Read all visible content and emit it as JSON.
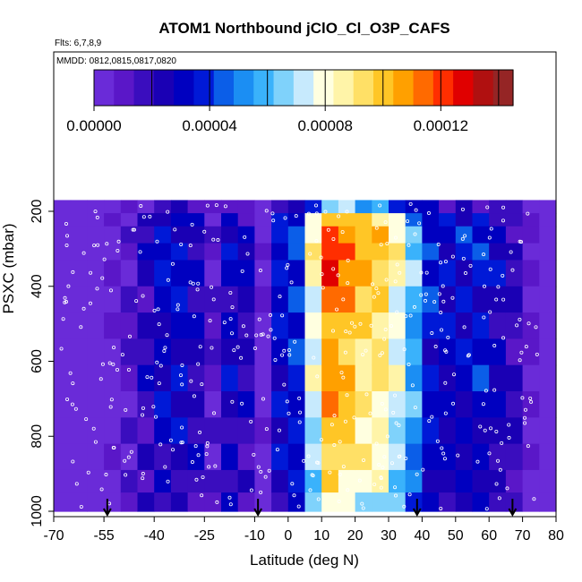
{
  "chart_data": {
    "type": "heatmap",
    "title": "ATOM1 Northbound jClO_Cl_O3P_CAFS",
    "flights_note": "Flts: 6,7,8,9",
    "dates_note": "MMDD: 0812,0815,0817,0820",
    "xlabel": "Latitude (deg N)",
    "ylabel": "PSXC (mbar)",
    "xlim": [
      -70,
      80
    ],
    "ylim": [
      1000,
      160
    ],
    "y_inverted": true,
    "x_tick_labels": [
      "-70",
      "-55",
      "-40",
      "-25",
      "-10",
      "0",
      "10",
      "20",
      "30",
      "40",
      "50",
      "60",
      "70",
      "80"
    ],
    "x_tick_values": [
      -70,
      -55,
      -40,
      -25,
      -10,
      0,
      10,
      20,
      30,
      40,
      50,
      60,
      70,
      80
    ],
    "y_tick_labels": [
      "200",
      "400",
      "600",
      "800",
      "1000"
    ],
    "y_tick_values": [
      200,
      400,
      600,
      800,
      1000
    ],
    "colorbar": {
      "min": 0.0,
      "max": 0.000145,
      "tick_labels": [
        "0.00000",
        "0.00004",
        "0.00008",
        "0.00012"
      ],
      "tick_values": [
        0.0,
        4e-05,
        8e-05,
        0.00012
      ],
      "colors": [
        "#6a2bd8",
        "#5a17c8",
        "#3a0dbe",
        "#1a00b4",
        "#0000c0",
        "#0019d7",
        "#0b5ee8",
        "#1b8ef3",
        "#3ab2fb",
        "#7fd2fb",
        "#c7eafd",
        "#ffffe0",
        "#fff4a8",
        "#ffe066",
        "#ffc626",
        "#ffa000",
        "#ff6a00",
        "#ff2e00",
        "#e00000",
        "#b01010",
        "#952525"
      ]
    },
    "latitude_bins": [
      -67.5,
      -62.5,
      -57.5,
      -52.5,
      -47.5,
      -42.5,
      -37.5,
      -32.5,
      -27.5,
      -22.5,
      -17.5,
      -12.5,
      -7.5,
      -2.5,
      2.5,
      7.5,
      12.5,
      17.5,
      22.5,
      27.5,
      32.5,
      37.5,
      42.5,
      47.5,
      52.5,
      57.5,
      62.5,
      67.5,
      72.5,
      77.5
    ],
    "pressure_bins": [
      {
        "top": 170,
        "bottom": 205
      },
      {
        "top": 205,
        "bottom": 240
      },
      {
        "top": 240,
        "bottom": 285
      },
      {
        "top": 285,
        "bottom": 330
      },
      {
        "top": 330,
        "bottom": 400
      },
      {
        "top": 400,
        "bottom": 470
      },
      {
        "top": 470,
        "bottom": 540
      },
      {
        "top": 540,
        "bottom": 610
      },
      {
        "top": 610,
        "bottom": 680
      },
      {
        "top": 680,
        "bottom": 750
      },
      {
        "top": 750,
        "bottom": 820
      },
      {
        "top": 820,
        "bottom": 890
      },
      {
        "top": 890,
        "bottom": 950
      },
      {
        "top": 950,
        "bottom": 1000
      }
    ],
    "latitude_profile": [
      0.0,
      0.0,
      3e-06,
      6e-06,
      1.2e-05,
      2.2e-05,
      3.3e-05,
      3.3e-05,
      2.5e-05,
      1.2e-05,
      3e-05,
      2.4e-05,
      6e-06,
      3.5e-05,
      4e-05,
      8.4e-05,
      0.00012,
      0.000112,
      0.000102,
      9.8e-05,
      8.4e-05,
      6.2e-05,
      3.8e-05,
      3.2e-05,
      3.4e-05,
      3.6e-05,
      2.8e-05,
      2e-05,
      8e-06,
      4e-06
    ],
    "pressure_factor": [
      0.55,
      0.9,
      1.0,
      1.05,
      1.0,
      0.95,
      0.92,
      0.88,
      0.95,
      0.9,
      0.85,
      0.82,
      0.78,
      0.7
    ],
    "descent_markers_lat": [
      -54,
      -9,
      38.5,
      67
    ]
  }
}
